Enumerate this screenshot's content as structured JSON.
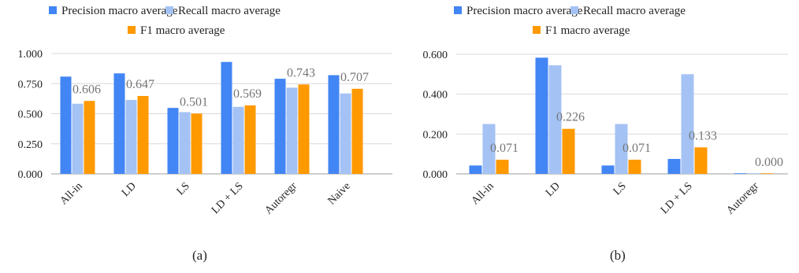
{
  "chart_data": [
    {
      "type": "bar",
      "caption": "(a)",
      "categories": [
        "All-in",
        "LD",
        "LS",
        "LD + LS",
        "Autoregr",
        "Naive"
      ],
      "series": [
        {
          "name": "Precision macro average",
          "color": "#4285F4",
          "values": [
            0.808,
            0.835,
            0.548,
            0.93,
            0.79,
            0.82
          ]
        },
        {
          "name": "Recall macro average",
          "color": "#A4C2F4",
          "values": [
            0.583,
            0.614,
            0.513,
            0.557,
            0.716,
            0.668
          ]
        },
        {
          "name": "F1 macro average",
          "color": "#FF9900",
          "values": [
            0.606,
            0.647,
            0.501,
            0.569,
            0.743,
            0.707
          ]
        }
      ],
      "data_labels": [
        "0.606",
        "0.647",
        "0.501",
        "0.569",
        "0.743",
        "0.707"
      ],
      "yticks": [
        "0.000",
        "0.250",
        "0.500",
        "0.750",
        "1.000"
      ],
      "ylim": [
        0,
        1.0
      ],
      "grid": true,
      "legend": "top"
    },
    {
      "type": "bar",
      "caption": "(b)",
      "categories": [
        "All-in",
        "LD",
        "LS",
        "LD + LS",
        "Autoregr"
      ],
      "series": [
        {
          "name": "Precision macro average",
          "color": "#4285F4",
          "values": [
            0.042,
            0.583,
            0.042,
            0.075,
            0.002
          ]
        },
        {
          "name": "Recall macro average",
          "color": "#A4C2F4",
          "values": [
            0.25,
            0.545,
            0.25,
            0.5,
            0.002
          ]
        },
        {
          "name": "F1 macro average",
          "color": "#FF9900",
          "values": [
            0.071,
            0.226,
            0.071,
            0.133,
            0.0
          ]
        }
      ],
      "data_labels": [
        "0.071",
        "0.226",
        "0.071",
        "0.133",
        "0.000"
      ],
      "yticks": [
        "0.000",
        "0.200",
        "0.400",
        "0.600"
      ],
      "ylim": [
        0,
        0.6
      ],
      "grid": true,
      "legend": "top"
    }
  ]
}
